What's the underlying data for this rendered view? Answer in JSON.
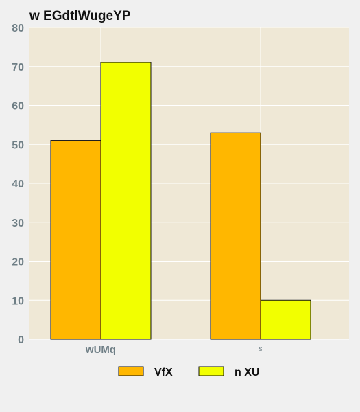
{
  "chart_data": {
    "type": "bar",
    "title": "w EGdtlWugeYP",
    "xlabel": "",
    "ylabel": "",
    "categories": [
      "wUMq",
      "s"
    ],
    "series": [
      {
        "name": "VfX",
        "values": [
          51,
          53
        ]
      },
      {
        "name": "n XU",
        "values": [
          71,
          10
        ]
      }
    ],
    "ylim": [
      0,
      80
    ],
    "yticks": [
      0,
      10,
      20,
      30,
      40,
      50,
      60,
      70,
      80
    ],
    "grid": true,
    "legend": "bottom-center"
  },
  "colors": {
    "plot_background": "#efe8d6",
    "page_background": "#f0f0f0",
    "grid": "#ffffff",
    "bar_outline": "#111111",
    "series": [
      "#ffb700",
      "#f2ff00"
    ]
  }
}
